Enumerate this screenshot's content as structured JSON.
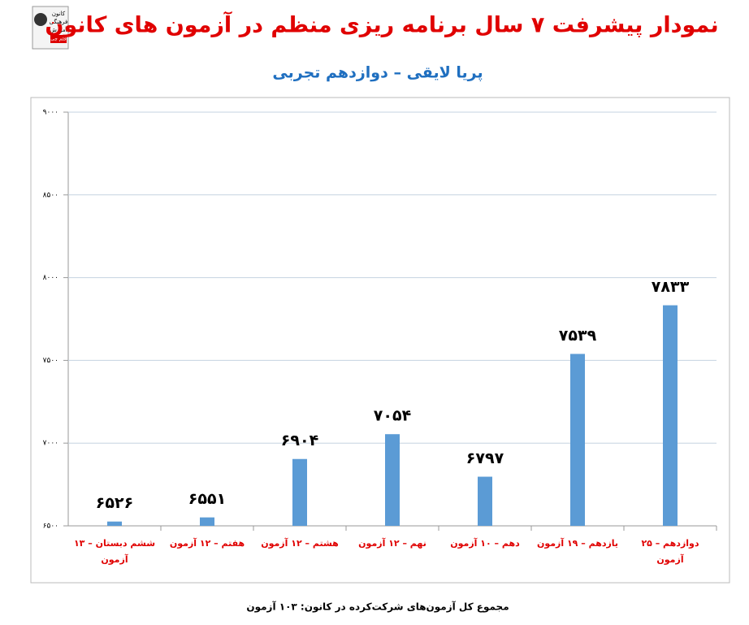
{
  "chart_data": {
    "type": "bar",
    "title": "نمودار پیشرفت ۷ سال برنامه ریزی منظم در آزمون های کانون",
    "subtitle": "پریا لایقی – دوازدهم تجربی",
    "logo": [
      "کانون",
      "فرهنگی",
      "آموزش",
      "قلم چی"
    ],
    "categories": [
      "ششم دبستان – ۱۳ آزمون",
      "هفتم – ۱۲ آزمون",
      "هشتم – ۱۲ آزمون",
      "نهم – ۱۲ آزمون",
      "دهم – ۱۰ آزمون",
      "یازدهم – ۱۹ آزمون",
      "دوازدهم – ۲۵ آزمون"
    ],
    "values": [
      6526,
      6551,
      6904,
      7054,
      6797,
      7539,
      7833
    ],
    "value_labels": [
      "۶۵۲۶",
      "۶۵۵۱",
      "۶۹۰۴",
      "۷۰۵۴",
      "۶۷۹۷",
      "۷۵۳۹",
      "۷۸۳۳"
    ],
    "color": "#5b9bd5",
    "ylim": [
      6500,
      9000
    ],
    "yticks": [
      {
        "value": 6500,
        "label": "۶۵۰۰"
      },
      {
        "value": 7000,
        "label": "۷۰۰۰"
      },
      {
        "value": 7500,
        "label": "۷۵۰۰"
      },
      {
        "value": 8000,
        "label": "۸۰۰۰"
      },
      {
        "value": 8500,
        "label": "۸۵۰۰"
      },
      {
        "value": 9000,
        "label": "۹۰۰۰"
      }
    ],
    "grid": true,
    "footer": "مجموع کل آزمون‌های شرکت‌کرده در کانون: ۱۰۳ آزمون"
  }
}
